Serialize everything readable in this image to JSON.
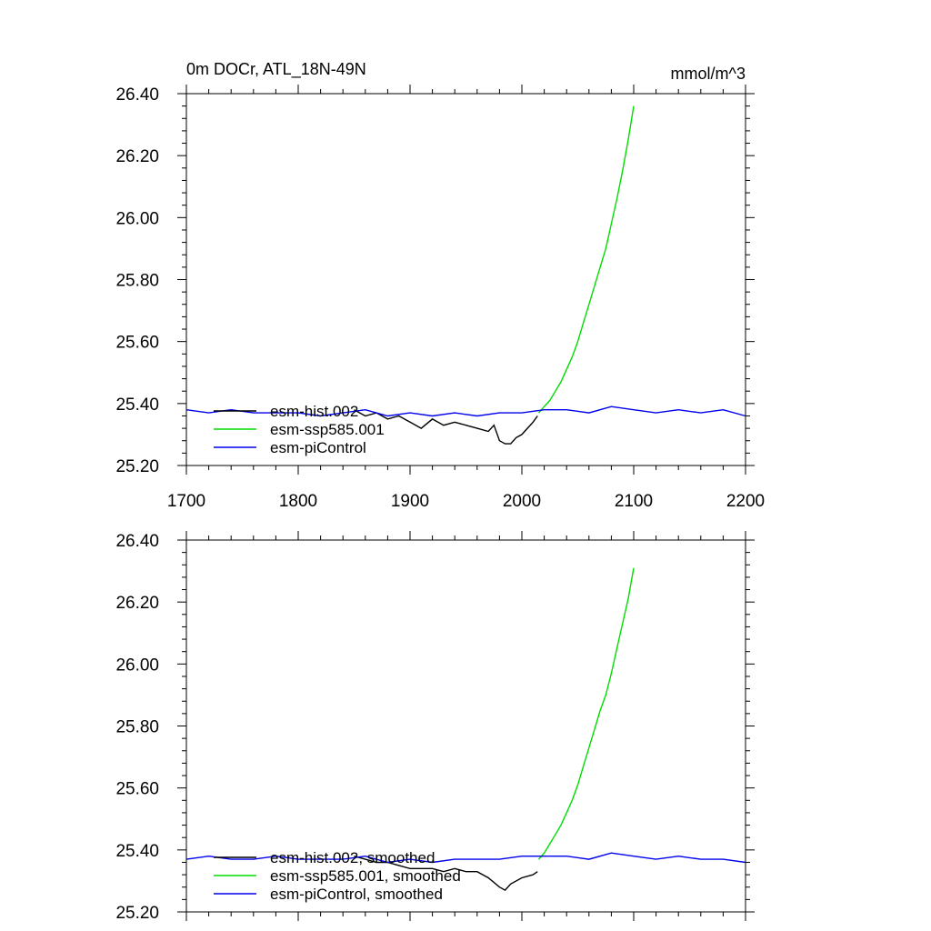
{
  "figure": {
    "title_left": "0m DOCr, ATL_18N-49N",
    "title_right": "mmol/m^3"
  },
  "chart_data": [
    {
      "type": "line",
      "ylim": [
        25.2,
        26.4
      ],
      "xlim": [
        1700,
        2200
      ],
      "y_ticks": [
        "25.20",
        "25.40",
        "25.60",
        "25.80",
        "26.00",
        "26.20",
        "26.40"
      ],
      "x_ticks": [
        "1700",
        "1800",
        "1900",
        "2000",
        "2100",
        "2200"
      ],
      "grid": false,
      "legend_position": "bottom-left",
      "series": [
        {
          "name": "esm-hist.002",
          "color": "#000000",
          "x": [
            1850,
            1860,
            1870,
            1880,
            1890,
            1900,
            1910,
            1920,
            1930,
            1940,
            1950,
            1960,
            1970,
            1975,
            1980,
            1985,
            1990,
            1995,
            2000,
            2005,
            2010,
            2014
          ],
          "y": [
            25.38,
            25.36,
            25.37,
            25.35,
            25.36,
            25.34,
            25.32,
            25.35,
            25.33,
            25.34,
            25.33,
            25.32,
            25.31,
            25.33,
            25.28,
            25.27,
            25.27,
            25.29,
            25.3,
            25.32,
            25.34,
            25.36
          ]
        },
        {
          "name": "esm-ssp585.001",
          "color": "#00dd00",
          "x": [
            2015,
            2020,
            2025,
            2030,
            2035,
            2040,
            2045,
            2050,
            2055,
            2060,
            2065,
            2070,
            2075,
            2080,
            2085,
            2090,
            2095,
            2100
          ],
          "y": [
            25.37,
            25.39,
            25.41,
            25.44,
            25.47,
            25.51,
            25.55,
            25.6,
            25.66,
            25.72,
            25.78,
            25.84,
            25.9,
            25.98,
            26.06,
            26.15,
            26.25,
            26.36
          ]
        },
        {
          "name": "esm-piControl",
          "color": "#0000ee",
          "x": [
            1700,
            1720,
            1740,
            1760,
            1780,
            1800,
            1820,
            1840,
            1860,
            1880,
            1900,
            1920,
            1940,
            1960,
            1980,
            2000,
            2020,
            2040,
            2060,
            2080,
            2100,
            2120,
            2140,
            2160,
            2180,
            2200
          ],
          "y": [
            25.38,
            25.37,
            25.38,
            25.37,
            25.37,
            25.37,
            25.36,
            25.37,
            25.38,
            25.36,
            25.37,
            25.36,
            25.37,
            25.36,
            25.37,
            25.37,
            25.38,
            25.38,
            25.37,
            25.39,
            25.38,
            25.37,
            25.38,
            25.37,
            25.38,
            25.36
          ]
        }
      ]
    },
    {
      "type": "line",
      "ylim": [
        25.2,
        26.4
      ],
      "xlim": [
        1700,
        2200
      ],
      "y_ticks": [
        "25.20",
        "25.40",
        "25.60",
        "25.80",
        "26.00",
        "26.20",
        "26.40"
      ],
      "grid": false,
      "legend_position": "bottom-left",
      "series": [
        {
          "name": "esm-hist.002, smoothed",
          "color": "#000000",
          "x": [
            1850,
            1860,
            1870,
            1880,
            1890,
            1900,
            1910,
            1920,
            1930,
            1940,
            1950,
            1960,
            1970,
            1980,
            1985,
            1990,
            2000,
            2010,
            2014
          ],
          "y": [
            25.38,
            25.37,
            25.36,
            25.36,
            25.35,
            25.34,
            25.34,
            25.34,
            25.33,
            25.34,
            25.33,
            25.33,
            25.31,
            25.28,
            25.27,
            25.29,
            25.31,
            25.32,
            25.33
          ]
        },
        {
          "name": "esm-ssp585.001, smoothed",
          "color": "#00dd00",
          "x": [
            2015,
            2020,
            2025,
            2030,
            2035,
            2040,
            2045,
            2050,
            2055,
            2060,
            2065,
            2070,
            2075,
            2080,
            2085,
            2090,
            2095,
            2100
          ],
          "y": [
            25.37,
            25.39,
            25.42,
            25.45,
            25.48,
            25.52,
            25.56,
            25.61,
            25.67,
            25.73,
            25.79,
            25.85,
            25.9,
            25.97,
            26.05,
            26.13,
            26.21,
            26.31
          ]
        },
        {
          "name": "esm-piControl, smoothed",
          "color": "#0000ee",
          "x": [
            1700,
            1720,
            1740,
            1760,
            1780,
            1800,
            1820,
            1840,
            1860,
            1880,
            1900,
            1920,
            1940,
            1960,
            1980,
            2000,
            2020,
            2040,
            2060,
            2080,
            2100,
            2120,
            2140,
            2160,
            2180,
            2200
          ],
          "y": [
            25.37,
            25.38,
            25.37,
            25.37,
            25.38,
            25.37,
            25.37,
            25.37,
            25.38,
            25.36,
            25.37,
            25.36,
            25.37,
            25.37,
            25.37,
            25.38,
            25.38,
            25.38,
            25.37,
            25.39,
            25.38,
            25.37,
            25.38,
            25.37,
            25.37,
            25.36
          ]
        }
      ]
    }
  ]
}
